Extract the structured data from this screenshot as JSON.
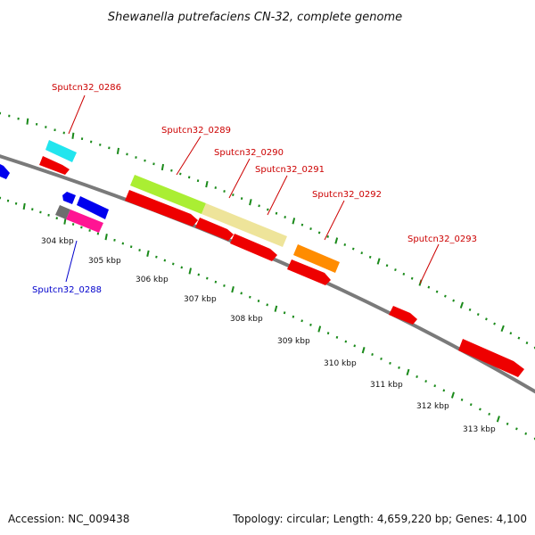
{
  "title": "Shewanella putrefaciens CN-32, complete genome",
  "footer": {
    "accession": "Accession: NC_009438",
    "topology": "Topology: circular; Length: 4,659,220 bp; Genes: 4,100"
  },
  "colors": {
    "background": "#ffffff",
    "backbone": "#7a7a7a",
    "gc_skew_dots": "#1a8a1a",
    "label_red": "#cc0000",
    "label_blue": "#0000cc",
    "feature_red": "#ee0000",
    "feature_blue": "#0000ee",
    "feature_cyan": "#22e5ee",
    "feature_lime": "#aaee33",
    "feature_khaki": "#eee49a",
    "feature_orange": "#ff8c00",
    "feature_pink": "#ff1493",
    "feature_gray": "#6e6e6e"
  },
  "ticks": [
    {
      "label": "304 kbp"
    },
    {
      "label": "305 kbp"
    },
    {
      "label": "306 kbp"
    },
    {
      "label": "307 kbp"
    },
    {
      "label": "308 kbp"
    },
    {
      "label": "309 kbp"
    },
    {
      "label": "310 kbp"
    },
    {
      "label": "311 kbp"
    },
    {
      "label": "312 kbp"
    },
    {
      "label": "313 kbp"
    }
  ],
  "gene_labels": [
    {
      "id": "Sputcn32_0286",
      "color": "label_red"
    },
    {
      "id": "Sputcn32_0288",
      "color": "label_blue"
    },
    {
      "id": "Sputcn32_0289",
      "color": "label_red"
    },
    {
      "id": "Sputcn32_0290",
      "color": "label_red"
    },
    {
      "id": "Sputcn32_0291",
      "color": "label_red"
    },
    {
      "id": "Sputcn32_0292",
      "color": "label_red"
    },
    {
      "id": "Sputcn32_0293",
      "color": "label_red"
    }
  ],
  "features": [
    {
      "name": "left-edge-blue-gene",
      "color": "feature_blue"
    },
    {
      "name": "cyan-feature-0286",
      "color": "feature_cyan"
    },
    {
      "name": "red-gene-0286",
      "color": "feature_red"
    },
    {
      "name": "blue-gene-small-a",
      "color": "feature_blue"
    },
    {
      "name": "blue-gene-small-b",
      "color": "feature_blue"
    },
    {
      "name": "gray-feature-0288",
      "color": "feature_gray"
    },
    {
      "name": "pink-feature-0288",
      "color": "feature_pink"
    },
    {
      "name": "lime-feature-0289",
      "color": "feature_lime"
    },
    {
      "name": "khaki-feature-0290",
      "color": "feature_khaki"
    },
    {
      "name": "red-gene-0289",
      "color": "feature_red"
    },
    {
      "name": "red-gene-0290",
      "color": "feature_red"
    },
    {
      "name": "red-gene-0291",
      "color": "feature_red"
    },
    {
      "name": "orange-feature-0292",
      "color": "feature_orange"
    },
    {
      "name": "red-gene-0292",
      "color": "feature_red"
    },
    {
      "name": "red-gene-0293-small",
      "color": "feature_red"
    },
    {
      "name": "red-gene-0293-large",
      "color": "feature_red"
    }
  ]
}
